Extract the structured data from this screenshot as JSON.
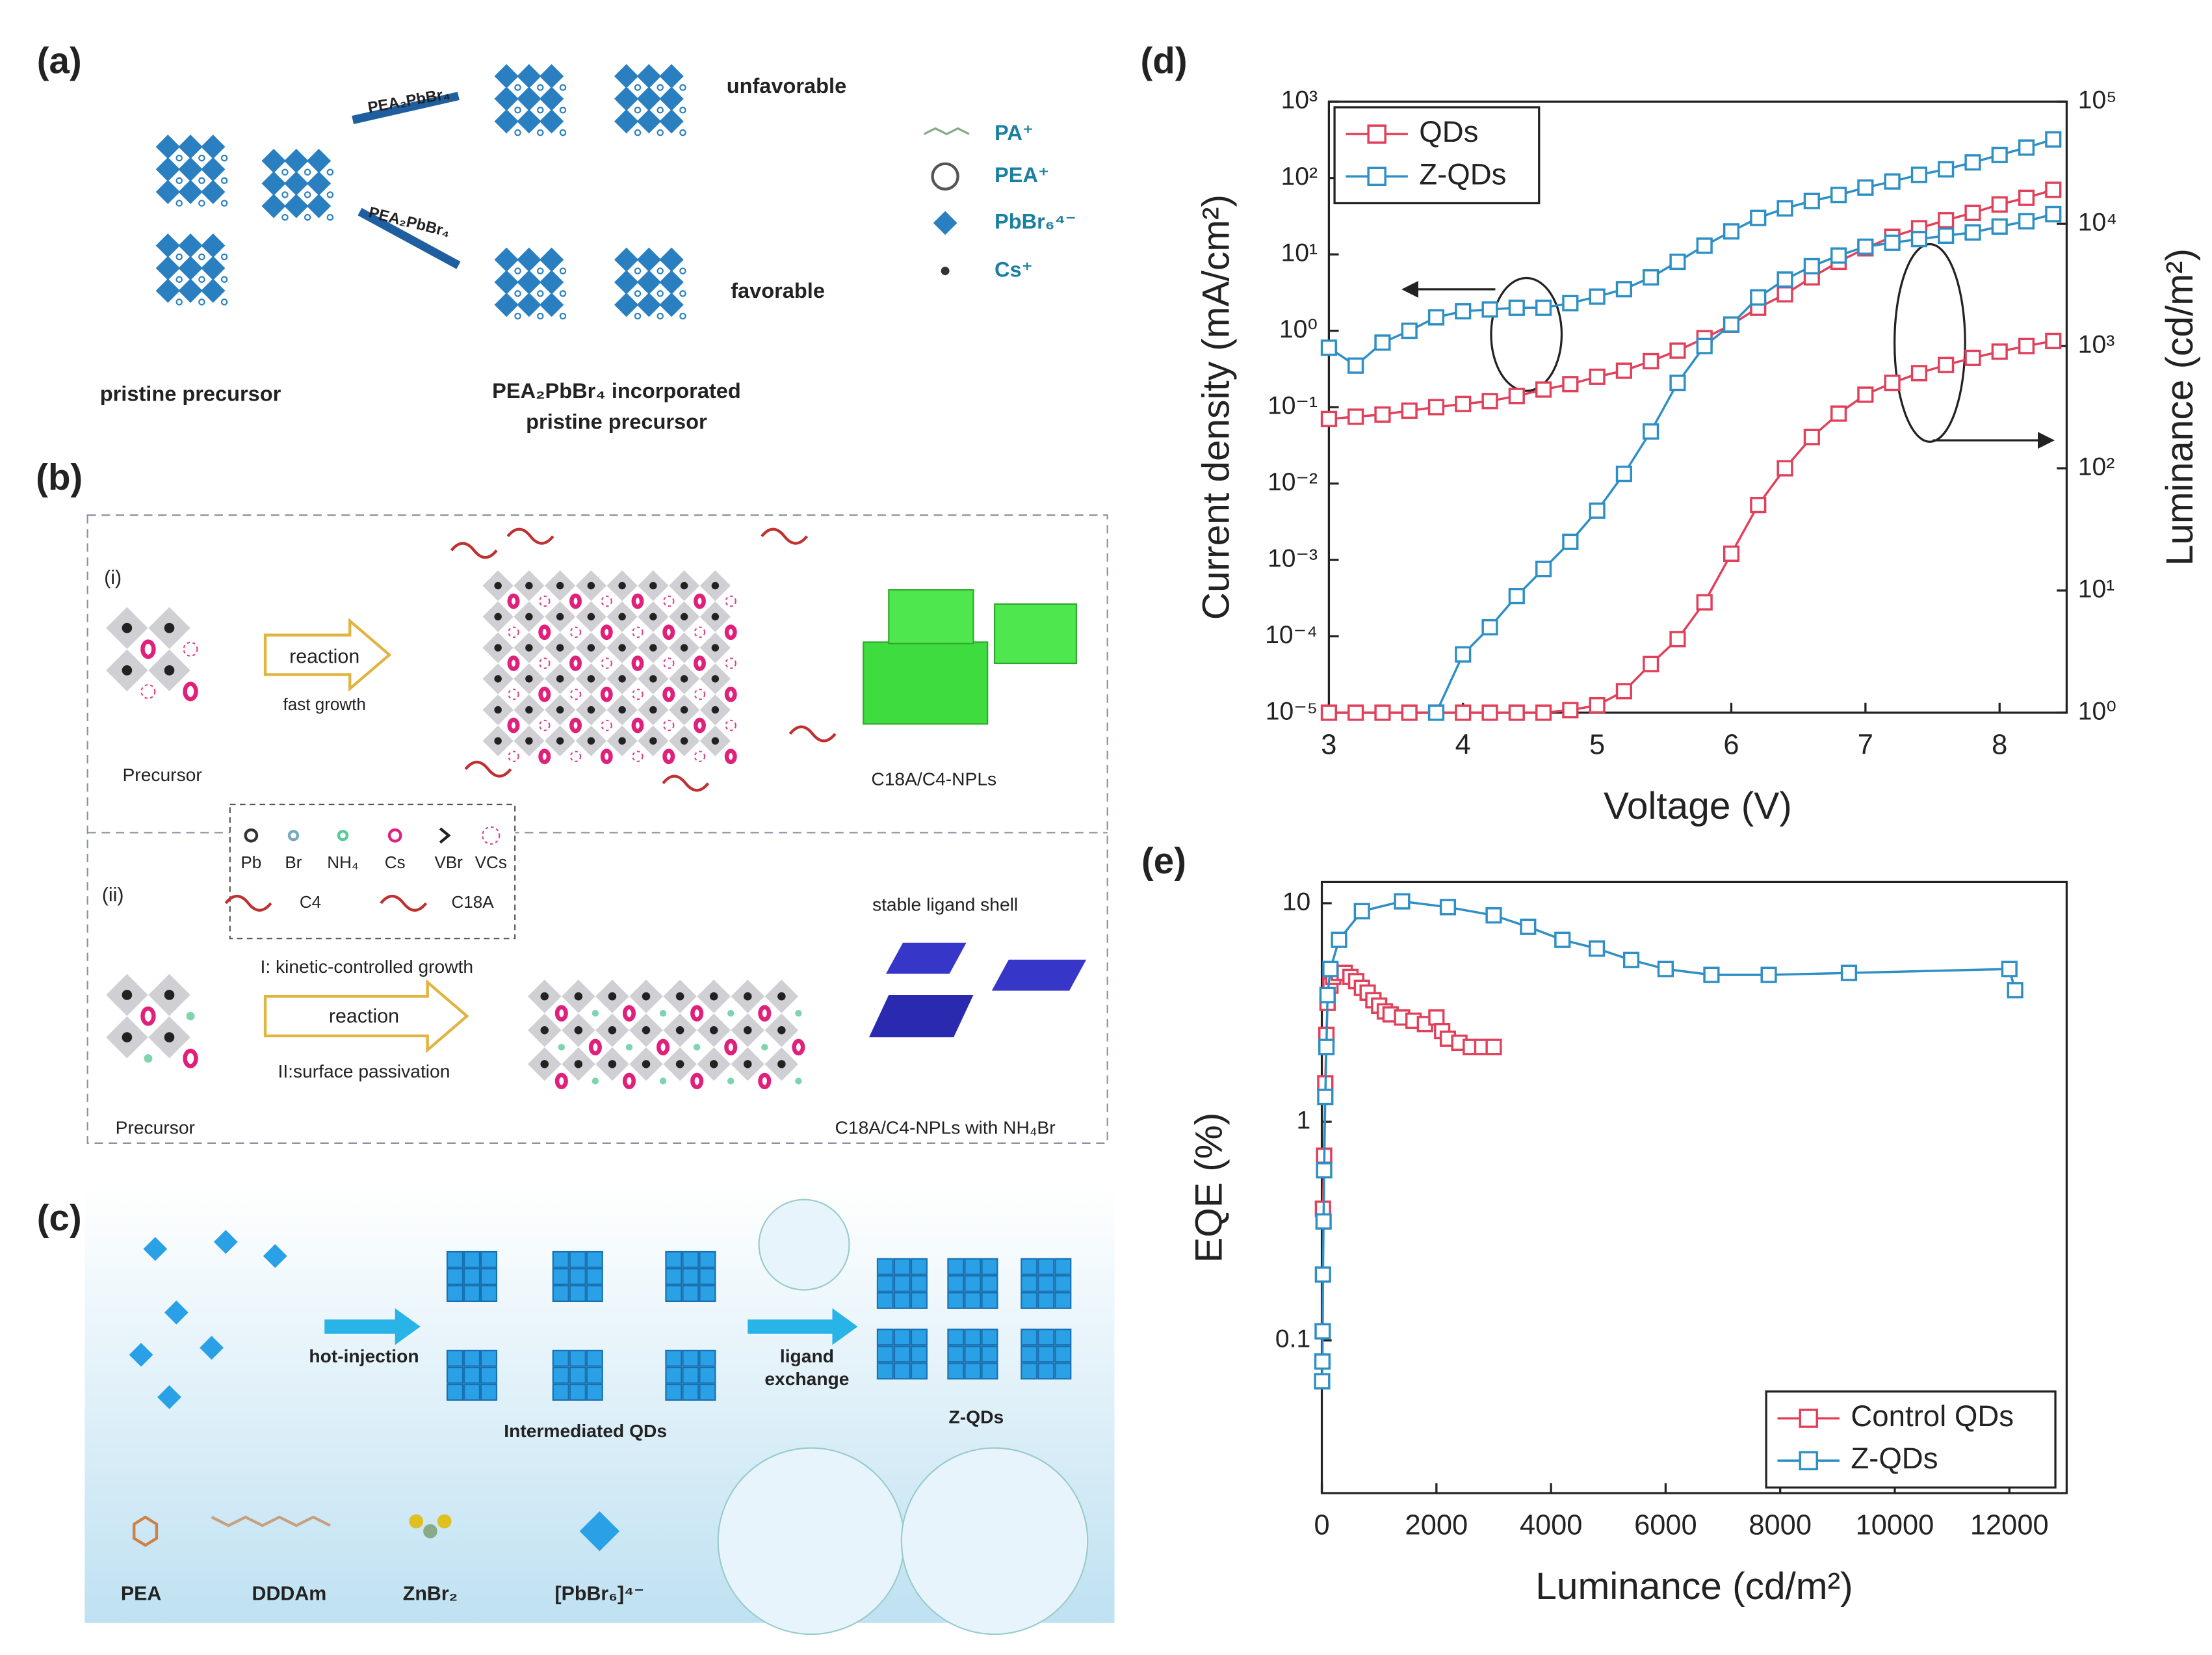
{
  "figure": {
    "a": {
      "label": "(a)",
      "reagent": [
        "PEA₂PbBr₄",
        "PEA₂PbBr₄"
      ],
      "outcomes": [
        "unfavorable",
        "favorable"
      ],
      "left_caption": "pristine precursor",
      "right_caption": [
        "PEA₂PbBr₄ incorporated",
        "pristine precursor"
      ],
      "legend": [
        "PA⁺",
        "PEA⁺",
        "PbBr₆⁴⁻",
        "Cs⁺"
      ]
    },
    "b": {
      "label": "(b)",
      "routes": [
        "(i)",
        "(ii)"
      ],
      "precursor": [
        "Precursor",
        "Precursor"
      ],
      "reaction": [
        "reaction",
        "reaction"
      ],
      "fast_growth": "fast growth",
      "product": [
        "C18A/C4-NPLs",
        "C18A/C4-NPLs with NH₄Br"
      ],
      "legend": [
        "Pb",
        "Br",
        "NH₄",
        "Cs",
        "VBr",
        "VCs"
      ],
      "ligands": [
        "C4",
        "C18A"
      ],
      "steps": [
        "I: kinetic-controlled growth",
        "II:surface passivation"
      ],
      "shell": "stable ligand shell"
    },
    "c": {
      "label": "(c)",
      "hot_injection": "hot-injection",
      "ligand_exchange": [
        "ligand",
        "exchange"
      ],
      "intermediate": "Intermediated QDs",
      "product": "Z-QDs",
      "legend": [
        "PEA",
        "DDDAm",
        "ZnBr₂",
        "[PbBr₆]⁴⁻"
      ]
    }
  },
  "chart_data": [
    {
      "type": "line",
      "panel_label": "(d)",
      "x_label": "Voltage (V)",
      "y_label": "Current density (mA/cm²)",
      "y2_label": "Luminance (cd/m²)",
      "x": [
        3.0,
        3.2,
        3.4,
        3.6,
        3.8,
        4.0,
        4.2,
        4.4,
        4.6,
        4.8,
        5.0,
        5.2,
        5.4,
        5.6,
        5.8,
        6.0,
        6.2,
        6.4,
        6.6,
        6.8,
        7.0,
        7.2,
        7.4,
        7.6,
        7.8,
        8.0,
        8.2,
        8.4
      ],
      "xlim": [
        3,
        8.5
      ],
      "xticks": [
        3,
        4,
        5,
        6,
        7,
        8
      ],
      "ylim": [
        1e-05,
        1000
      ],
      "yscale": "log",
      "yticks": [
        {
          "value": 1e-05,
          "label": "10⁻⁵"
        },
        {
          "value": 0.0001,
          "label": "10⁻⁴"
        },
        {
          "value": 0.001,
          "label": "10⁻³"
        },
        {
          "value": 0.01,
          "label": "10⁻²"
        },
        {
          "value": 0.1,
          "label": "10⁻¹"
        },
        {
          "value": 1,
          "label": "10⁰"
        },
        {
          "value": 10,
          "label": "10¹"
        },
        {
          "value": 100,
          "label": "10²"
        },
        {
          "value": 1000,
          "label": "10³"
        }
      ],
      "y2lim": [
        1,
        100000
      ],
      "y2scale": "log",
      "y2ticks": [
        {
          "value": 1,
          "label": "10⁰"
        },
        {
          "value": 10,
          "label": "10¹"
        },
        {
          "value": 100,
          "label": "10²"
        },
        {
          "value": 1000,
          "label": "10³"
        },
        {
          "value": 10000,
          "label": "10⁴"
        },
        {
          "value": 100000,
          "label": "10⁵"
        }
      ],
      "legend": "upper left",
      "series": [
        {
          "name": "QDs",
          "color": "#e0405a",
          "values": [
            0.07,
            0.075,
            0.08,
            0.09,
            0.1,
            0.11,
            0.12,
            0.14,
            0.17,
            0.2,
            0.25,
            0.3,
            0.4,
            0.55,
            0.8,
            1.2,
            2,
            3,
            5,
            8,
            12,
            17,
            22,
            28,
            35,
            45,
            55,
            70
          ]
        },
        {
          "name": "Z-QDs",
          "color": "#2e8fc4",
          "values": [
            0.6,
            0.35,
            0.7,
            1.0,
            1.5,
            1.8,
            1.9,
            2.0,
            2.0,
            2.3,
            2.8,
            3.5,
            5,
            8,
            13,
            20,
            30,
            40,
            50,
            60,
            75,
            90,
            110,
            130,
            160,
            200,
            250,
            320
          ]
        },
        {
          "name": "QDs",
          "color": "#e0405a",
          "axis": "y2",
          "values": [
            1,
            1,
            1,
            1,
            1,
            1,
            1,
            1,
            1,
            1.05,
            1.15,
            1.5,
            2.5,
            4,
            8,
            20,
            50,
            100,
            180,
            280,
            400,
            500,
            600,
            700,
            800,
            900,
            1000,
            1100
          ]
        },
        {
          "name": "Z-QDs",
          "color": "#2e8fc4",
          "axis": "y2",
          "values": [
            null,
            null,
            null,
            null,
            1,
            3,
            5,
            9,
            15,
            25,
            45,
            90,
            200,
            500,
            1000,
            1500,
            2500,
            3500,
            4500,
            5500,
            6500,
            7000,
            7500,
            8000,
            8500,
            9500,
            10500,
            12000
          ]
        }
      ]
    },
    {
      "type": "line",
      "panel_label": "(e)",
      "x_label": "Luminance (cd/m²)",
      "y_label": "EQE (%)",
      "xlim": [
        0,
        13000
      ],
      "xticks": [
        0,
        2000,
        4000,
        6000,
        8000,
        10000,
        12000
      ],
      "ylim": [
        0.02,
        12.5
      ],
      "yscale": "log",
      "yticks": [
        0.1,
        1,
        10
      ],
      "legend": "lower right",
      "series": [
        {
          "name": "Control QDs",
          "color": "#e0405a",
          "x": [
            20,
            40,
            60,
            80,
            100,
            150,
            200,
            300,
            400,
            500,
            600,
            700,
            800,
            900,
            1000,
            1100,
            1200,
            1400,
            1600,
            1800,
            2000,
            2100,
            2200,
            2400,
            2600,
            2800,
            3000
          ],
          "values": [
            0.4,
            0.7,
            1.5,
            2.5,
            3.5,
            4.2,
            4.6,
            4.8,
            4.8,
            4.6,
            4.4,
            4.1,
            3.9,
            3.6,
            3.4,
            3.2,
            3.1,
            3.0,
            2.9,
            2.8,
            3.0,
            2.6,
            2.4,
            2.3,
            2.2,
            2.2,
            2.2
          ]
        },
        {
          "name": "Z-QDs",
          "color": "#2e8fc4",
          "x": [
            5,
            10,
            15,
            20,
            30,
            40,
            60,
            80,
            100,
            150,
            300,
            700,
            1400,
            2200,
            3000,
            3600,
            4200,
            4800,
            5400,
            6000,
            6800,
            7800,
            9200,
            12000,
            12100
          ],
          "values": [
            0.065,
            0.08,
            0.11,
            0.2,
            0.35,
            0.6,
            1.3,
            2.2,
            3.8,
            5,
            6.8,
            9.2,
            10.2,
            9.6,
            8.8,
            7.8,
            6.8,
            6.2,
            5.5,
            5,
            4.7,
            4.7,
            4.8,
            5,
            4
          ]
        }
      ]
    }
  ]
}
